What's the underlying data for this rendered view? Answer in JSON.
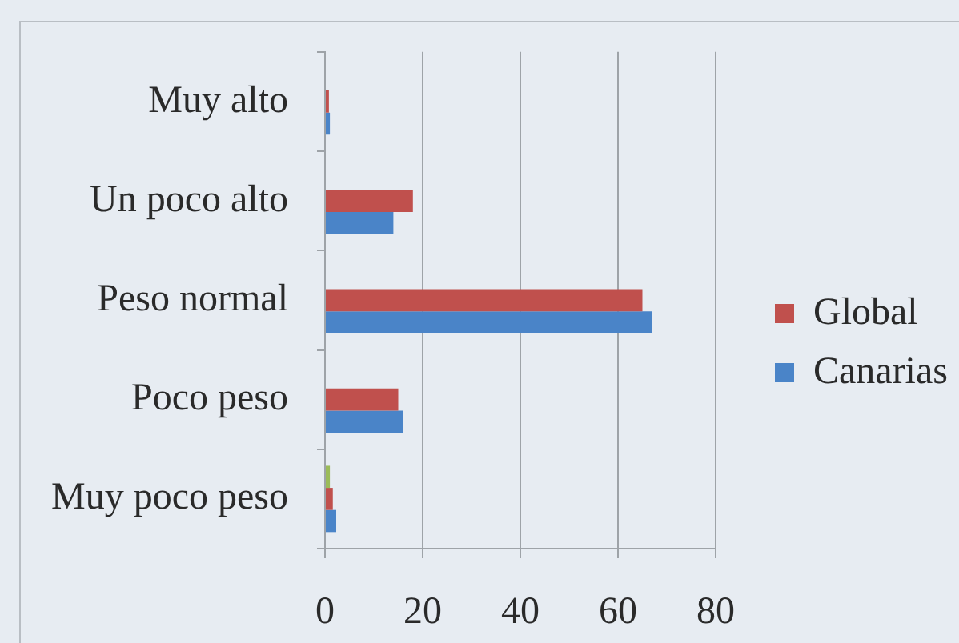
{
  "chart_data": {
    "type": "bar",
    "orientation": "horizontal",
    "categories": [
      "Muy alto",
      "Un poco alto",
      "Peso normal",
      "Poco peso",
      "Muy poco peso"
    ],
    "series": [
      {
        "color": "#9bbb59",
        "values": [
          null,
          null,
          null,
          null,
          1
        ]
      },
      {
        "name": "Global",
        "color": "#c0504d",
        "values": [
          0.8,
          18,
          65,
          15,
          1.6
        ]
      },
      {
        "name": "Canarias",
        "color": "#4a84c8",
        "values": [
          1,
          14,
          67,
          16,
          2.3
        ]
      }
    ],
    "xlim": [
      0,
      80
    ],
    "xticks": [
      0,
      20,
      40,
      60,
      80
    ],
    "grid": "x",
    "legend": "right"
  }
}
